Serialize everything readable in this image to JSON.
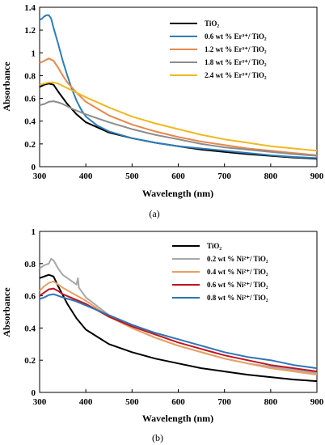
{
  "chart_data": [
    {
      "type": "line",
      "caption": "(a)",
      "xlabel": "Wavelength (nm)",
      "ylabel": "Absorbance",
      "xlim": [
        300,
        900
      ],
      "ylim": [
        0,
        1.4
      ],
      "xticks": [
        "300",
        "400",
        "500",
        "600",
        "700",
        "800",
        "900"
      ],
      "yticks": [
        "0",
        "0.2",
        "0.4",
        "0.6",
        "0.8",
        "1",
        "1.2",
        "1.4"
      ],
      "legend_position": "top-right",
      "grid": false,
      "series": [
        {
          "name": "TiO₂",
          "color": "#000000",
          "points": [
            [
              300,
              0.7
            ],
            [
              310,
              0.72
            ],
            [
              320,
              0.73
            ],
            [
              330,
              0.72
            ],
            [
              340,
              0.66
            ],
            [
              360,
              0.55
            ],
            [
              380,
              0.46
            ],
            [
              400,
              0.39
            ],
            [
              450,
              0.3
            ],
            [
              500,
              0.25
            ],
            [
              550,
              0.21
            ],
            [
              600,
              0.18
            ],
            [
              650,
              0.15
            ],
            [
              700,
              0.13
            ],
            [
              750,
              0.11
            ],
            [
              800,
              0.095
            ],
            [
              850,
              0.08
            ],
            [
              900,
              0.07
            ]
          ]
        },
        {
          "name": "0.6 wt % Er³⁺/ TiO₂",
          "color": "#2e7db8",
          "points": [
            [
              300,
              1.29
            ],
            [
              305,
              1.3
            ],
            [
              310,
              1.32
            ],
            [
              315,
              1.33
            ],
            [
              320,
              1.33
            ],
            [
              325,
              1.3
            ],
            [
              330,
              1.22
            ],
            [
              340,
              1.08
            ],
            [
              350,
              0.93
            ],
            [
              360,
              0.8
            ],
            [
              370,
              0.68
            ],
            [
              380,
              0.58
            ],
            [
              390,
              0.5
            ],
            [
              400,
              0.44
            ],
            [
              425,
              0.36
            ],
            [
              450,
              0.31
            ],
            [
              500,
              0.25
            ],
            [
              550,
              0.21
            ],
            [
              600,
              0.18
            ],
            [
              650,
              0.16
            ],
            [
              700,
              0.14
            ],
            [
              750,
              0.12
            ],
            [
              800,
              0.1
            ],
            [
              850,
              0.085
            ],
            [
              900,
              0.075
            ]
          ]
        },
        {
          "name": "1.2 wt % Er³⁺/ TiO₂",
          "color": "#e8884a",
          "points": [
            [
              300,
              0.91
            ],
            [
              310,
              0.93
            ],
            [
              320,
              0.95
            ],
            [
              330,
              0.93
            ],
            [
              340,
              0.87
            ],
            [
              350,
              0.8
            ],
            [
              360,
              0.74
            ],
            [
              380,
              0.65
            ],
            [
              400,
              0.57
            ],
            [
              450,
              0.45
            ],
            [
              500,
              0.37
            ],
            [
              550,
              0.31
            ],
            [
              600,
              0.26
            ],
            [
              650,
              0.22
            ],
            [
              700,
              0.19
            ],
            [
              750,
              0.16
            ],
            [
              800,
              0.14
            ],
            [
              850,
              0.12
            ],
            [
              900,
              0.1
            ]
          ]
        },
        {
          "name": "1.8 wt % Er³⁺/ TiO₂",
          "color": "#8c8c8c",
          "points": [
            [
              300,
              0.54
            ],
            [
              310,
              0.55
            ],
            [
              320,
              0.57
            ],
            [
              330,
              0.575
            ],
            [
              340,
              0.565
            ],
            [
              350,
              0.55
            ],
            [
              375,
              0.5
            ],
            [
              400,
              0.46
            ],
            [
              450,
              0.39
            ],
            [
              500,
              0.33
            ],
            [
              550,
              0.28
            ],
            [
              600,
              0.24
            ],
            [
              650,
              0.2
            ],
            [
              700,
              0.17
            ],
            [
              750,
              0.15
            ],
            [
              800,
              0.13
            ],
            [
              850,
              0.11
            ],
            [
              900,
              0.095
            ]
          ]
        },
        {
          "name": "2.4 wt % Er³⁺/ TiO₂",
          "color": "#f0b822",
          "points": [
            [
              300,
              0.72
            ],
            [
              310,
              0.73
            ],
            [
              320,
              0.74
            ],
            [
              330,
              0.74
            ],
            [
              340,
              0.73
            ],
            [
              350,
              0.71
            ],
            [
              375,
              0.66
            ],
            [
              400,
              0.61
            ],
            [
              450,
              0.52
            ],
            [
              500,
              0.44
            ],
            [
              550,
              0.38
            ],
            [
              600,
              0.33
            ],
            [
              650,
              0.28
            ],
            [
              700,
              0.24
            ],
            [
              750,
              0.21
            ],
            [
              800,
              0.18
            ],
            [
              850,
              0.16
            ],
            [
              900,
              0.14
            ]
          ]
        }
      ]
    },
    {
      "type": "line",
      "caption": "(b)",
      "xlabel": "Wavelength (nm)",
      "ylabel": "Absorbance",
      "xlim": [
        300,
        900
      ],
      "ylim": [
        0,
        1
      ],
      "xticks": [
        "300",
        "400",
        "500",
        "600",
        "700",
        "800",
        "900"
      ],
      "yticks": [
        "0",
        "0.2",
        "0.4",
        "0.6",
        "0.8",
        "1"
      ],
      "legend_position": "top-right",
      "grid": false,
      "series": [
        {
          "name": "TiO₂",
          "color": "#000000",
          "points": [
            [
              300,
              0.71
            ],
            [
              310,
              0.72
            ],
            [
              320,
              0.73
            ],
            [
              330,
              0.72
            ],
            [
              340,
              0.66
            ],
            [
              360,
              0.55
            ],
            [
              380,
              0.46
            ],
            [
              400,
              0.39
            ],
            [
              450,
              0.3
            ],
            [
              500,
              0.25
            ],
            [
              550,
              0.21
            ],
            [
              600,
              0.18
            ],
            [
              650,
              0.15
            ],
            [
              700,
              0.13
            ],
            [
              750,
              0.11
            ],
            [
              800,
              0.095
            ],
            [
              850,
              0.08
            ],
            [
              900,
              0.07
            ]
          ]
        },
        {
          "name": "0.2 wt % Ni²⁺/ TiO₂",
          "color": "#a8a8a8",
          "points": [
            [
              300,
              0.77
            ],
            [
              310,
              0.79
            ],
            [
              320,
              0.8
            ],
            [
              325,
              0.83
            ],
            [
              330,
              0.82
            ],
            [
              340,
              0.77
            ],
            [
              350,
              0.73
            ],
            [
              360,
              0.71
            ],
            [
              370,
              0.69
            ],
            [
              380,
              0.67
            ],
            [
              383,
              0.71
            ],
            [
              385,
              0.65
            ],
            [
              400,
              0.59
            ],
            [
              450,
              0.48
            ],
            [
              500,
              0.4
            ],
            [
              550,
              0.34
            ],
            [
              600,
              0.29
            ],
            [
              650,
              0.25
            ],
            [
              700,
              0.21
            ],
            [
              750,
              0.18
            ],
            [
              800,
              0.16
            ],
            [
              850,
              0.14
            ],
            [
              900,
              0.12
            ]
          ]
        },
        {
          "name": "0.4 wt % Ni²⁺/ TiO₂",
          "color": "#e8a063",
          "points": [
            [
              300,
              0.63
            ],
            [
              310,
              0.66
            ],
            [
              320,
              0.68
            ],
            [
              330,
              0.69
            ],
            [
              340,
              0.67
            ],
            [
              350,
              0.65
            ],
            [
              375,
              0.61
            ],
            [
              400,
              0.57
            ],
            [
              450,
              0.47
            ],
            [
              500,
              0.4
            ],
            [
              550,
              0.34
            ],
            [
              600,
              0.29
            ],
            [
              650,
              0.25
            ],
            [
              700,
              0.21
            ],
            [
              750,
              0.18
            ],
            [
              800,
              0.15
            ],
            [
              850,
              0.13
            ],
            [
              900,
              0.11
            ]
          ]
        },
        {
          "name": "0.6 wt % Ni²⁺/ TiO₂",
          "color": "#c0141e",
          "points": [
            [
              300,
              0.6
            ],
            [
              310,
              0.62
            ],
            [
              320,
              0.64
            ],
            [
              330,
              0.645
            ],
            [
              340,
              0.63
            ],
            [
              350,
              0.61
            ],
            [
              375,
              0.58
            ],
            [
              400,
              0.55
            ],
            [
              450,
              0.47
            ],
            [
              500,
              0.41
            ],
            [
              550,
              0.36
            ],
            [
              600,
              0.31
            ],
            [
              650,
              0.27
            ],
            [
              700,
              0.23
            ],
            [
              750,
              0.2
            ],
            [
              800,
              0.17
            ],
            [
              850,
              0.15
            ],
            [
              900,
              0.13
            ]
          ]
        },
        {
          "name": "0.8 wt % Ni²⁺/ TiO₂",
          "color": "#2e75b6",
          "points": [
            [
              300,
              0.58
            ],
            [
              310,
              0.59
            ],
            [
              320,
              0.605
            ],
            [
              330,
              0.61
            ],
            [
              340,
              0.6
            ],
            [
              350,
              0.59
            ],
            [
              375,
              0.57
            ],
            [
              400,
              0.54
            ],
            [
              450,
              0.48
            ],
            [
              500,
              0.42
            ],
            [
              550,
              0.37
            ],
            [
              600,
              0.33
            ],
            [
              650,
              0.29
            ],
            [
              700,
              0.25
            ],
            [
              750,
              0.22
            ],
            [
              800,
              0.2
            ],
            [
              850,
              0.17
            ],
            [
              900,
              0.15
            ]
          ]
        }
      ]
    }
  ]
}
